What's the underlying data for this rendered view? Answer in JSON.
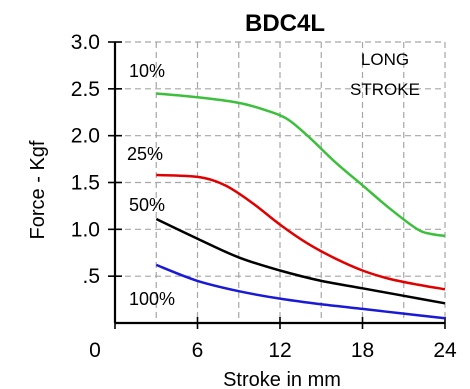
{
  "chart_data": {
    "type": "line",
    "title": "BDC4L",
    "xlabel": "Stroke in mm",
    "ylabel": "Force - Kgf",
    "xlim": [
      0,
      24
    ],
    "ylim": [
      0,
      3.0
    ],
    "x_ticks": [
      0,
      6,
      12,
      18,
      24
    ],
    "x_tick_labels": [
      "0",
      "6",
      "12",
      "18",
      "24"
    ],
    "y_ticks": [
      0.5,
      1.0,
      1.5,
      2.0,
      2.5,
      3.0
    ],
    "y_tick_labels": [
      ".5",
      "1.0",
      "1.5",
      "2.0",
      "2.5",
      "3.0"
    ],
    "grid": true,
    "annotation": [
      "LONG",
      "STROKE"
    ],
    "series": [
      {
        "name": "10%",
        "color": "#3cc03c",
        "x": [
          3.0,
          6,
          9,
          11,
          12.5,
          14,
          16,
          18,
          20,
          22,
          23,
          24
        ],
        "y": [
          2.45,
          2.41,
          2.35,
          2.27,
          2.18,
          2.0,
          1.72,
          1.47,
          1.22,
          1.0,
          0.95,
          0.93
        ]
      },
      {
        "name": "25%",
        "color": "#e00000",
        "x": [
          3.0,
          6,
          8,
          10,
          12,
          14,
          16,
          18,
          20,
          22,
          24
        ],
        "y": [
          1.58,
          1.56,
          1.47,
          1.28,
          1.05,
          0.85,
          0.69,
          0.56,
          0.47,
          0.41,
          0.36
        ]
      },
      {
        "name": "50%",
        "color": "#000000",
        "x": [
          3.0,
          6,
          9,
          12,
          15,
          18,
          21,
          24
        ],
        "y": [
          1.11,
          0.9,
          0.7,
          0.56,
          0.45,
          0.37,
          0.29,
          0.21
        ]
      },
      {
        "name": "100%",
        "color": "#1a1ad6",
        "x": [
          3.0,
          6,
          9,
          12,
          15,
          18,
          21,
          24
        ],
        "y": [
          0.62,
          0.45,
          0.34,
          0.26,
          0.2,
          0.15,
          0.1,
          0.05
        ]
      }
    ]
  }
}
